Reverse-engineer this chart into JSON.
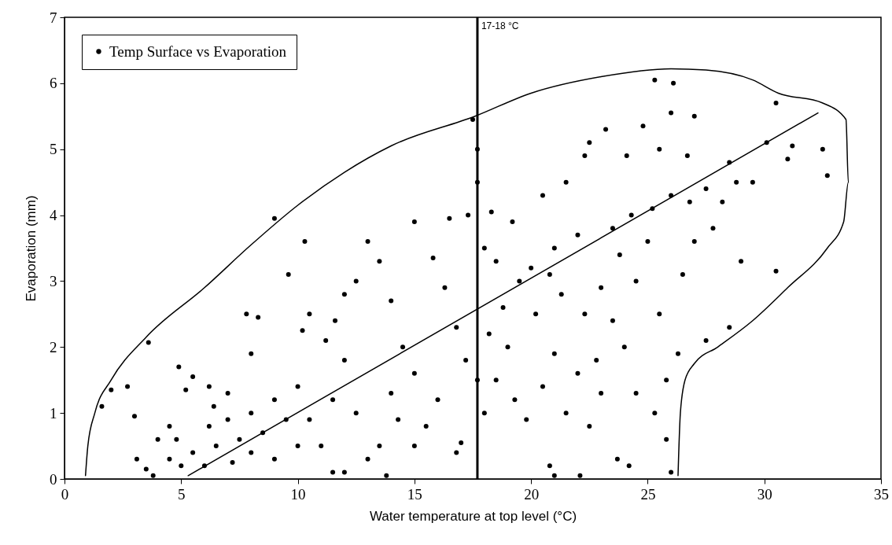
{
  "chart_data": {
    "type": "scatter",
    "xlabel": "Water temperature at top level (°C)",
    "ylabel": "Evaporation (mm)",
    "xlim": [
      0,
      35
    ],
    "ylim": [
      0,
      7
    ],
    "xticks": [
      0,
      5,
      10,
      15,
      20,
      25,
      30,
      35
    ],
    "yticks": [
      0,
      1,
      2,
      3,
      4,
      5,
      6,
      7
    ],
    "legend": "top left",
    "ref_lines": [
      {
        "axis": "x",
        "value": 17.7,
        "label": "17-18 °C",
        "color": "#000000"
      }
    ],
    "series": [
      {
        "name": "Temp Surface vs Evaporation",
        "color": "#000000",
        "x": [
          1.6,
          2.0,
          2.7,
          3.6,
          3.0,
          3.1,
          3.5,
          3.8,
          4.0,
          4.5,
          4.9,
          5.2,
          5.5,
          6.2,
          6.4,
          7.0,
          7.8,
          8.0,
          8.3,
          9.0,
          9.6,
          10.3,
          10.2,
          10.5,
          11.2,
          11.6,
          12.0,
          13.0,
          12.5,
          13.5,
          14.0,
          15.0,
          15.8,
          16.5,
          17.3,
          17.5,
          17.7,
          17.7,
          18.3,
          18.0,
          19.2,
          20.5,
          21.5,
          22.3,
          22.5,
          23.2,
          24.1,
          24.8,
          25.3,
          26.1,
          26.0,
          27.0,
          25.5,
          26.7,
          30.5,
          30.1,
          31.2,
          31.0,
          32.5,
          32.7,
          30.5,
          29.0,
          28.5,
          27.5,
          25.8,
          25.3,
          26.3,
          25.8,
          26.0,
          24.2,
          23.7,
          22.5,
          22.1,
          21.0,
          20.8,
          19.8,
          20.5,
          21.0,
          21.5,
          22.0,
          22.8,
          23.5,
          24.0,
          24.5,
          23.0,
          23.8,
          24.5,
          25.0,
          25.5,
          26.5,
          27.0,
          27.8,
          28.2,
          28.8,
          29.5,
          28.5,
          27.5,
          26.8,
          26.0,
          25.2,
          24.3,
          23.5,
          22.0,
          21.0,
          20.0,
          19.5,
          18.5,
          18.8,
          19.0,
          18.2,
          18.5,
          18.0,
          19.3,
          20.2,
          21.3,
          22.3,
          23.0,
          20.8,
          17.7,
          17.2,
          16.8,
          16.3,
          16.0,
          15.5,
          16.8,
          17.0,
          15.0,
          14.5,
          14.0,
          13.5,
          13.0,
          12.5,
          12.0,
          11.5,
          11.0,
          11.5,
          10.5,
          10.0,
          10.0,
          9.5,
          9.0,
          9.0,
          8.5,
          8.0,
          8.0,
          7.5,
          7.2,
          7.0,
          6.5,
          6.2,
          6.0,
          5.5,
          5.0,
          4.8,
          4.5,
          12.0,
          13.8,
          15.0,
          14.3
        ],
        "values": [
          1.1,
          1.35,
          1.4,
          2.07,
          0.95,
          0.3,
          0.15,
          0.05,
          0.6,
          0.8,
          1.7,
          1.35,
          1.55,
          1.4,
          1.1,
          1.3,
          2.5,
          1.9,
          2.45,
          3.95,
          3.1,
          3.6,
          2.25,
          2.5,
          2.1,
          2.4,
          2.8,
          3.6,
          3.0,
          3.3,
          2.7,
          3.9,
          3.35,
          3.95,
          4.0,
          5.45,
          5.0,
          4.5,
          4.05,
          3.5,
          3.9,
          4.3,
          4.5,
          4.9,
          5.1,
          5.3,
          4.9,
          5.35,
          6.05,
          6.0,
          5.55,
          5.5,
          5.0,
          4.9,
          5.7,
          5.1,
          5.05,
          4.85,
          5.0,
          4.6,
          3.15,
          3.3,
          2.3,
          2.1,
          1.5,
          1.0,
          1.9,
          0.6,
          0.1,
          0.2,
          0.3,
          0.8,
          0.05,
          0.05,
          0.2,
          0.9,
          1.4,
          1.9,
          1.0,
          1.6,
          1.8,
          2.4,
          2.0,
          1.3,
          2.9,
          3.4,
          3.0,
          3.6,
          2.5,
          3.1,
          3.6,
          3.8,
          4.2,
          4.5,
          4.5,
          4.8,
          4.4,
          4.2,
          4.3,
          4.1,
          4.0,
          3.8,
          3.7,
          3.5,
          3.2,
          3.0,
          3.3,
          2.6,
          2.0,
          2.2,
          1.5,
          1.0,
          1.2,
          2.5,
          2.8,
          2.5,
          1.3,
          3.1,
          1.5,
          1.8,
          2.3,
          2.9,
          1.2,
          0.8,
          0.4,
          0.55,
          1.6,
          2.0,
          1.3,
          0.5,
          0.3,
          1.0,
          1.8,
          1.2,
          0.5,
          0.1,
          0.9,
          1.4,
          0.5,
          0.9,
          1.2,
          0.3,
          0.7,
          1.0,
          0.4,
          0.6,
          0.25,
          0.9,
          0.5,
          0.8,
          0.2,
          0.4,
          0.2,
          0.6,
          0.3,
          0.1,
          0.05,
          0.5,
          0.9
        ]
      },
      {
        "type": "line",
        "color": "#000000",
        "x": [
          5.3,
          32.3
        ],
        "values": [
          0.05,
          5.55
        ]
      },
      {
        "type": "line",
        "color": "#000000",
        "x": [
          0.9,
          1.0,
          1.3,
          2.0,
          3.5,
          6,
          8,
          10,
          12,
          14,
          17.6,
          20,
          23,
          26,
          27.5,
          29.5,
          30.6,
          32.5,
          33.5,
          33.6,
          33.4,
          32.7,
          31,
          29.5,
          28,
          27.0,
          26.6,
          26.4,
          26.3
        ],
        "values": [
          0.05,
          0.5,
          1.0,
          1.5,
          2.15,
          2.9,
          3.55,
          4.15,
          4.65,
          5.05,
          5.5,
          5.85,
          6.1,
          6.22,
          6.2,
          6.05,
          5.85,
          5.7,
          5.45,
          4.5,
          3.9,
          3.5,
          2.9,
          2.4,
          2.0,
          1.75,
          1.5,
          1.0,
          0.05
        ]
      }
    ]
  }
}
